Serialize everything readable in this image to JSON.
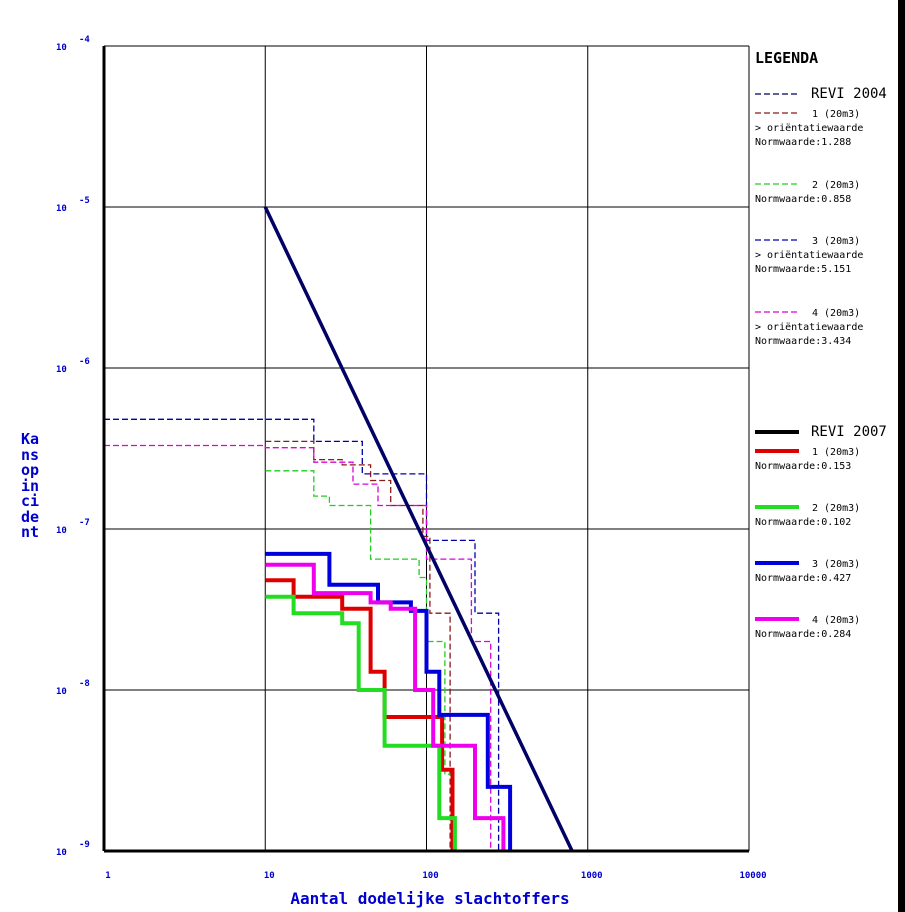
{
  "chart_data": {
    "type": "line",
    "xlabel": "Aantal dodelijke slachtoffers",
    "ylabel": "Kans op incident",
    "x_scale": "log",
    "y_scale": "log",
    "xlim": [
      1,
      10000
    ],
    "ylim": [
      1e-09,
      0.0001
    ],
    "grid": true,
    "x_ticks": [
      {
        "value": 1,
        "label": "1"
      },
      {
        "value": 10,
        "label": "10"
      },
      {
        "value": 100,
        "label": "100"
      },
      {
        "value": 1000,
        "label": "1000"
      },
      {
        "value": 10000,
        "label": "10000"
      }
    ],
    "y_ticks": [
      {
        "value": 0.0001,
        "base": "10",
        "exp": "-4"
      },
      {
        "value": 1e-05,
        "base": "10",
        "exp": "-5"
      },
      {
        "value": 1e-06,
        "base": "10",
        "exp": "-6"
      },
      {
        "value": 1e-07,
        "base": "10",
        "exp": "-7"
      },
      {
        "value": 1e-08,
        "base": "10",
        "exp": "-8"
      },
      {
        "value": 1e-09,
        "base": "10",
        "exp": "-9"
      }
    ],
    "norm_line": {
      "name": "orientatiewaarde",
      "color": "#000066",
      "points": [
        [
          10,
          1e-05
        ],
        [
          800,
          1e-09
        ]
      ]
    },
    "series": [
      {
        "name": "1 (20m3)",
        "group": "REVI 2004",
        "color": "#8b1a1a",
        "dashed": true,
        "thick": false,
        "points": [
          [
            10,
            3.5e-07
          ],
          [
            20,
            3.5e-07
          ],
          [
            20,
            2.7e-07
          ],
          [
            30,
            2.7e-07
          ],
          [
            30,
            2.5e-07
          ],
          [
            45,
            2.5e-07
          ],
          [
            45,
            2e-07
          ],
          [
            60,
            2e-07
          ],
          [
            60,
            1.4e-07
          ],
          [
            95,
            1.4e-07
          ],
          [
            95,
            9e-08
          ],
          [
            105,
            9e-08
          ],
          [
            105,
            3e-08
          ],
          [
            140,
            3e-08
          ],
          [
            140,
            1e-09
          ]
        ]
      },
      {
        "name": "2 (20m3)",
        "group": "REVI 2004",
        "color": "#22cc22",
        "dashed": true,
        "thick": false,
        "points": [
          [
            10,
            2.3e-07
          ],
          [
            20,
            2.3e-07
          ],
          [
            20,
            1.6e-07
          ],
          [
            25,
            1.6e-07
          ],
          [
            25,
            1.4e-07
          ],
          [
            45,
            1.4e-07
          ],
          [
            45,
            6.5e-08
          ],
          [
            90,
            6.5e-08
          ],
          [
            90,
            5e-08
          ],
          [
            100,
            5e-08
          ],
          [
            100,
            2e-08
          ],
          [
            130,
            2e-08
          ],
          [
            130,
            3e-09
          ],
          [
            145,
            3e-09
          ],
          [
            145,
            1e-09
          ]
        ]
      },
      {
        "name": "3 (20m3)",
        "group": "REVI 2004",
        "color": "#0000aa",
        "dashed": true,
        "thick": false,
        "points": [
          [
            1,
            4.8e-07
          ],
          [
            20,
            4.8e-07
          ],
          [
            20,
            3.5e-07
          ],
          [
            40,
            3.5e-07
          ],
          [
            40,
            2.2e-07
          ],
          [
            100,
            2.2e-07
          ],
          [
            100,
            8.5e-08
          ],
          [
            200,
            8.5e-08
          ],
          [
            200,
            3e-08
          ],
          [
            280,
            3e-08
          ],
          [
            280,
            1e-09
          ]
        ]
      },
      {
        "name": "4 (20m3)",
        "group": "REVI 2004",
        "color": "#dd00dd",
        "dashed": true,
        "thick": false,
        "points": [
          [
            1,
            3.3e-07
          ],
          [
            10,
            3.3e-07
          ],
          [
            10,
            3.2e-07
          ],
          [
            20,
            3.2e-07
          ],
          [
            20,
            2.6e-07
          ],
          [
            35,
            2.6e-07
          ],
          [
            35,
            1.9e-07
          ],
          [
            50,
            1.9e-07
          ],
          [
            50,
            1.4e-07
          ],
          [
            100,
            1.4e-07
          ],
          [
            100,
            6.5e-08
          ],
          [
            190,
            6.5e-08
          ],
          [
            190,
            2e-08
          ],
          [
            250,
            2e-08
          ],
          [
            250,
            1e-09
          ]
        ]
      },
      {
        "name": "1 (20m3)",
        "group": "REVI 2007",
        "color": "#dd0000",
        "dashed": false,
        "thick": true,
        "points": [
          [
            10,
            4.8e-08
          ],
          [
            15,
            4.8e-08
          ],
          [
            15,
            3.8e-08
          ],
          [
            30,
            3.8e-08
          ],
          [
            30,
            3.2e-08
          ],
          [
            45,
            3.2e-08
          ],
          [
            45,
            1.3e-08
          ],
          [
            55,
            1.3e-08
          ],
          [
            55,
            6.8e-09
          ],
          [
            125,
            6.8e-09
          ],
          [
            125,
            3.2e-09
          ],
          [
            145,
            3.2e-09
          ],
          [
            145,
            1e-09
          ]
        ]
      },
      {
        "name": "2 (20m3)",
        "group": "REVI 2007",
        "color": "#22dd22",
        "dashed": false,
        "thick": true,
        "points": [
          [
            10,
            3.8e-08
          ],
          [
            15,
            3.8e-08
          ],
          [
            15,
            3e-08
          ],
          [
            30,
            3e-08
          ],
          [
            30,
            2.6e-08
          ],
          [
            38,
            2.6e-08
          ],
          [
            38,
            1e-08
          ],
          [
            55,
            1e-08
          ],
          [
            55,
            4.5e-09
          ],
          [
            120,
            4.5e-09
          ],
          [
            120,
            1.6e-09
          ],
          [
            150,
            1.6e-09
          ],
          [
            150,
            1e-09
          ]
        ]
      },
      {
        "name": "3 (20m3)",
        "group": "REVI 2007",
        "color": "#0000dd",
        "dashed": false,
        "thick": true,
        "points": [
          [
            10,
            7e-08
          ],
          [
            25,
            7e-08
          ],
          [
            25,
            4.5e-08
          ],
          [
            50,
            4.5e-08
          ],
          [
            50,
            3.5e-08
          ],
          [
            80,
            3.5e-08
          ],
          [
            80,
            3.1e-08
          ],
          [
            100,
            3.1e-08
          ],
          [
            100,
            1.3e-08
          ],
          [
            120,
            1.3e-08
          ],
          [
            120,
            7e-09
          ],
          [
            240,
            7e-09
          ],
          [
            240,
            2.5e-09
          ],
          [
            330,
            2.5e-09
          ],
          [
            330,
            1e-09
          ]
        ]
      },
      {
        "name": "4 (20m3)",
        "group": "REVI 2007",
        "color": "#ee00ee",
        "dashed": false,
        "thick": true,
        "points": [
          [
            10,
            6e-08
          ],
          [
            20,
            6e-08
          ],
          [
            20,
            4e-08
          ],
          [
            45,
            4e-08
          ],
          [
            45,
            3.5e-08
          ],
          [
            60,
            3.5e-08
          ],
          [
            60,
            3.2e-08
          ],
          [
            85,
            3.2e-08
          ],
          [
            85,
            1e-08
          ],
          [
            110,
            1e-08
          ],
          [
            110,
            4.5e-09
          ],
          [
            200,
            4.5e-09
          ],
          [
            200,
            1.6e-09
          ],
          [
            300,
            1.6e-09
          ],
          [
            300,
            1e-09
          ]
        ]
      }
    ],
    "legend": {
      "title": "LEGENDA",
      "placement": "right",
      "entries": [
        {
          "label": "REVI 2004",
          "color": "#000066",
          "style": "dashed",
          "large": true
        },
        {
          "label": "1 (20m3)",
          "color": "#8b1a1a",
          "style": "dashed",
          "notes": [
            "> oriëntatiewaarde",
            "Normwaarde:1.288"
          ]
        },
        {
          "label": "2 (20m3)",
          "color": "#22cc22",
          "style": "dashed",
          "notes": [
            "Normwaarde:0.858"
          ]
        },
        {
          "label": "3 (20m3)",
          "color": "#0000aa",
          "style": "dashed",
          "notes": [
            "> oriëntatiewaarde",
            "Normwaarde:5.151"
          ]
        },
        {
          "label": "4 (20m3)",
          "color": "#dd00dd",
          "style": "dashed",
          "notes": [
            "> oriëntatiewaarde",
            "Normwaarde:3.434"
          ]
        },
        {
          "label": "REVI 2007",
          "color": "#000000",
          "style": "solid",
          "large": true
        },
        {
          "label": "1 (20m3)",
          "color": "#dd0000",
          "style": "solid",
          "notes": [
            "Normwaarde:0.153"
          ]
        },
        {
          "label": "2 (20m3)",
          "color": "#22dd22",
          "style": "solid",
          "notes": [
            "Normwaarde:0.102"
          ]
        },
        {
          "label": "3 (20m3)",
          "color": "#0000dd",
          "style": "solid",
          "notes": [
            "Normwaarde:0.427"
          ]
        },
        {
          "label": "4 (20m3)",
          "color": "#ee00ee",
          "style": "solid",
          "notes": [
            "Normwaarde:0.284"
          ]
        }
      ]
    }
  }
}
